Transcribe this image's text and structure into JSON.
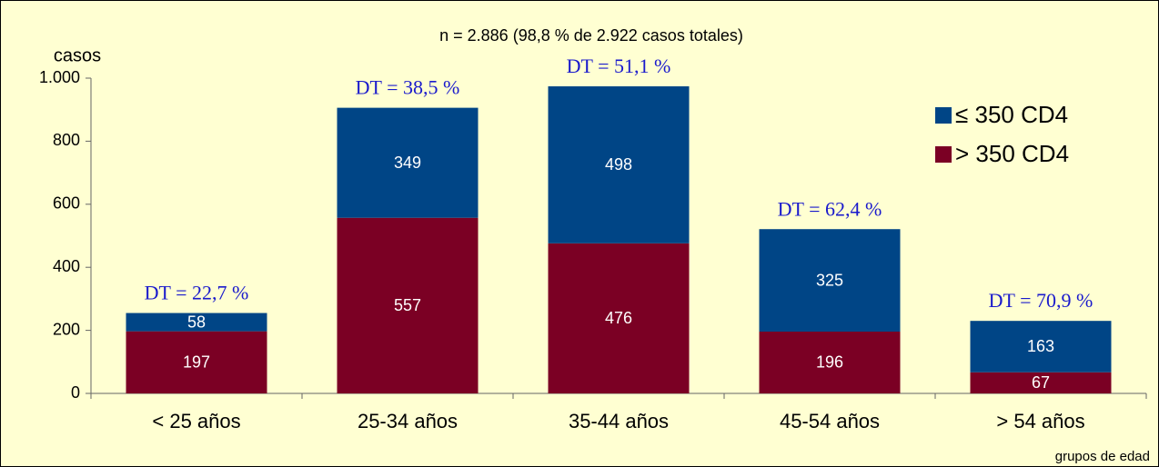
{
  "chart_data": {
    "type": "stacked_bar",
    "title": "n = 2.886 (98,8 % de 2.922 casos totales)",
    "y_label": "casos",
    "x_label": "grupos de edad",
    "categories": [
      "< 25 años",
      "25-34 años",
      "35-44 años",
      "45-54 años",
      "> 54 años"
    ],
    "series": [
      {
        "name": "> 350 CD4",
        "color": "#7b0024",
        "values": [
          197,
          557,
          476,
          196,
          67
        ]
      },
      {
        "name": "≤ 350 CD4",
        "color": "#004586",
        "values": [
          58,
          349,
          498,
          325,
          163
        ]
      }
    ],
    "annotations": [
      "DT = 22,7  %",
      "DT = 38,5  %",
      "DT = 51,1  %",
      "DT = 62,4  %",
      "DT = 70,9  %"
    ],
    "ylim": [
      0,
      1000
    ],
    "yticks": [
      0,
      200,
      400,
      600,
      800,
      {
        "value": 1000,
        "label": "1.000"
      }
    ],
    "legend": "right"
  }
}
